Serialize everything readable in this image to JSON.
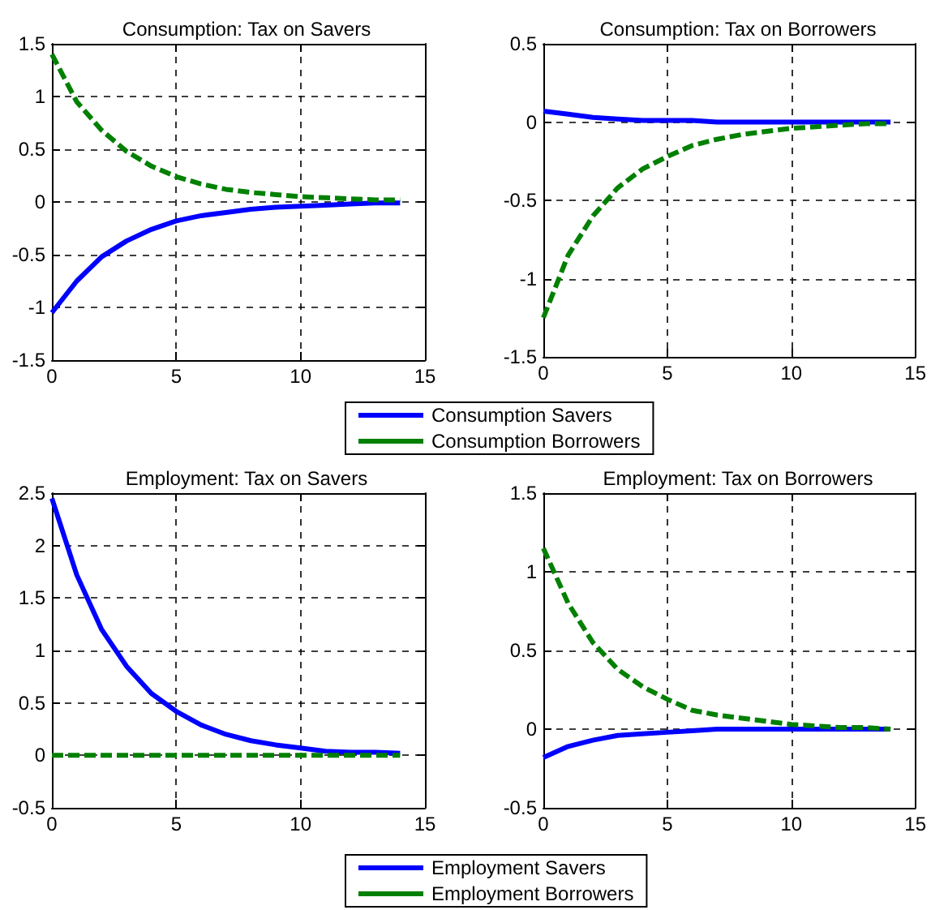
{
  "chart_data": [
    {
      "type": "line",
      "title": "Consumption: Tax on Savers",
      "x": [
        0,
        1,
        2,
        3,
        4,
        5,
        6,
        7,
        8,
        9,
        10,
        11,
        12,
        13,
        14
      ],
      "xlim": [
        0,
        15
      ],
      "xticks": [
        0,
        5,
        10,
        15
      ],
      "ylim": [
        -1.5,
        1.5
      ],
      "yticks": [
        -1.5,
        -1,
        -0.5,
        0,
        0.5,
        1,
        1.5
      ],
      "grid": true,
      "legend": "bottom",
      "marker": "none",
      "series": [
        {
          "name": "Consumption Savers",
          "color": "#0000ff",
          "line_style": "solid",
          "values": [
            -1.05,
            -0.75,
            -0.52,
            -0.37,
            -0.26,
            -0.18,
            -0.13,
            -0.1,
            -0.07,
            -0.05,
            -0.04,
            -0.03,
            -0.02,
            -0.01,
            -0.01
          ]
        },
        {
          "name": "Consumption Borrowers",
          "color": "#008000",
          "line_style": "dashed",
          "values": [
            1.4,
            0.95,
            0.68,
            0.48,
            0.34,
            0.24,
            0.17,
            0.12,
            0.09,
            0.07,
            0.05,
            0.04,
            0.03,
            0.02,
            0.02
          ]
        }
      ]
    },
    {
      "type": "line",
      "title": "Consumption: Tax on Borrowers",
      "x": [
        0,
        1,
        2,
        3,
        4,
        5,
        6,
        7,
        8,
        9,
        10,
        11,
        12,
        13,
        14
      ],
      "xlim": [
        0,
        15
      ],
      "xticks": [
        0,
        5,
        10,
        15
      ],
      "ylim": [
        -1.5,
        0.5
      ],
      "yticks": [
        -1.5,
        -1,
        -0.5,
        0,
        0.5
      ],
      "grid": true,
      "marker": "none",
      "series": [
        {
          "color": "#0000ff",
          "line_style": "solid",
          "values": [
            0.07,
            0.05,
            0.03,
            0.02,
            0.01,
            0.01,
            0.01,
            0,
            0,
            0,
            0,
            0,
            0,
            0,
            0
          ]
        },
        {
          "color": "#008000",
          "line_style": "dashed",
          "values": [
            -1.25,
            -0.85,
            -0.6,
            -0.42,
            -0.3,
            -0.22,
            -0.15,
            -0.11,
            -0.08,
            -0.06,
            -0.04,
            -0.03,
            -0.02,
            -0.01,
            -0.01
          ]
        }
      ]
    },
    {
      "type": "line",
      "title": "Employment: Tax on Savers",
      "x": [
        0,
        1,
        2,
        3,
        4,
        5,
        6,
        7,
        8,
        9,
        10,
        11,
        12,
        13,
        14
      ],
      "xlim": [
        0,
        15
      ],
      "xticks": [
        0,
        5,
        10,
        15
      ],
      "ylim": [
        -0.5,
        2.5
      ],
      "yticks": [
        -0.5,
        0,
        0.5,
        1,
        1.5,
        2,
        2.5
      ],
      "grid": true,
      "legend": "bottom",
      "marker": "none",
      "series": [
        {
          "name": "Employment Savers",
          "color": "#0000ff",
          "line_style": "solid",
          "values": [
            2.45,
            1.72,
            1.2,
            0.85,
            0.59,
            0.42,
            0.29,
            0.2,
            0.14,
            0.1,
            0.07,
            0.04,
            0.03,
            0.03,
            0.02
          ]
        },
        {
          "name": "Employment Borrowers",
          "color": "#008000",
          "line_style": "dashed",
          "values": [
            0,
            0,
            0,
            0,
            0,
            0,
            0,
            0,
            0,
            0,
            0,
            0,
            0,
            0,
            0
          ]
        }
      ]
    },
    {
      "type": "line",
      "title": "Employment: Tax on Borrowers",
      "x": [
        0,
        1,
        2,
        3,
        4,
        5,
        6,
        7,
        8,
        9,
        10,
        11,
        12,
        13,
        14
      ],
      "xlim": [
        0,
        15
      ],
      "xticks": [
        0,
        5,
        10,
        15
      ],
      "ylim": [
        -0.5,
        1.5
      ],
      "yticks": [
        -0.5,
        0,
        0.5,
        1,
        1.5
      ],
      "grid": true,
      "marker": "none",
      "series": [
        {
          "color": "#0000ff",
          "line_style": "solid",
          "values": [
            -0.18,
            -0.11,
            -0.07,
            -0.04,
            -0.03,
            -0.02,
            -0.01,
            0,
            0,
            0,
            0,
            0,
            0,
            0,
            0
          ]
        },
        {
          "color": "#008000",
          "line_style": "dashed",
          "values": [
            1.15,
            0.8,
            0.55,
            0.38,
            0.27,
            0.19,
            0.12,
            0.09,
            0.07,
            0.05,
            0.03,
            0.02,
            0.01,
            0.01,
            0
          ]
        }
      ]
    }
  ]
}
